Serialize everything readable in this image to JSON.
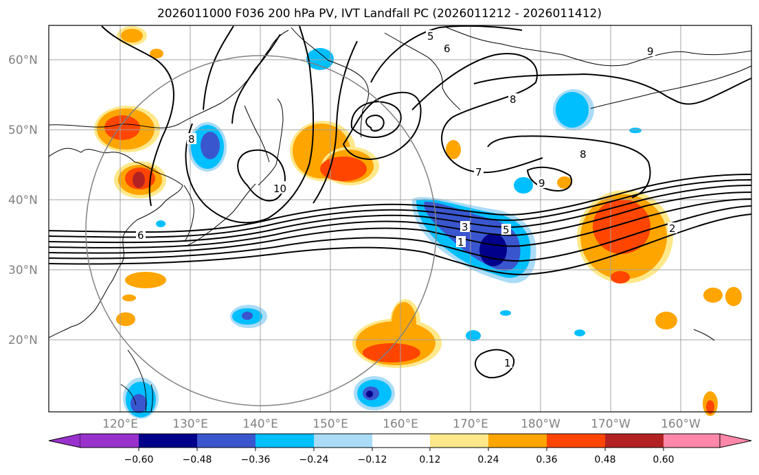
{
  "title": "2026011000 F036 200 hPa PV, IVT Landfall PC (2026011212 - 2026011412)",
  "map": {
    "lon_labels": [
      "120°E",
      "130°E",
      "140°E",
      "150°E",
      "160°E",
      "170°E",
      "180°W",
      "170°W",
      "160°W"
    ],
    "lat_labels": [
      "60°N",
      "50°N",
      "40°N",
      "30°N",
      "20°N"
    ],
    "grid": true,
    "region_circle": true,
    "contour_labels": [
      "5",
      "6",
      "8",
      "9",
      "7",
      "8",
      "9",
      "10",
      "6",
      "3",
      "5",
      "1",
      "2",
      "1",
      "8"
    ]
  },
  "colorbar": {
    "ticks": [
      "−0.60",
      "−0.48",
      "−0.36",
      "−0.24",
      "−0.12",
      "0.12",
      "0.24",
      "0.36",
      "0.48",
      "0.60"
    ],
    "colors": [
      "#9932cc",
      "#00008b",
      "#3a56cf",
      "#00bfff",
      "#aadcf7",
      "#ffffff",
      "#ffe88a",
      "#ffa500",
      "#ff4500",
      "#b22222",
      "#ff88aa"
    ],
    "extend": "both"
  }
}
